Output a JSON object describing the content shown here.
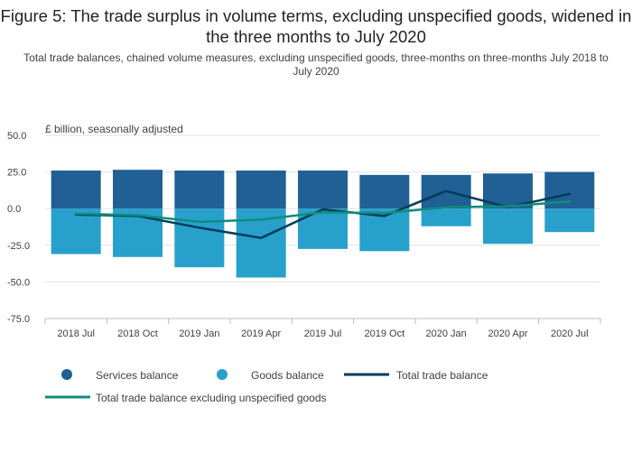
{
  "chart_data": {
    "type": "bar",
    "title": "Figure 5: The trade surplus in volume terms, excluding unspecified goods, widened in the three months to July 2020",
    "subtitle": "Total trade balances, chained volume measures, excluding unspecified goods, three-months on three-months July 2018 to July 2020",
    "ylabel": "£ billion, seasonally adjusted",
    "ylim": [
      -75,
      50
    ],
    "yticks": [
      "50.0",
      "25.0",
      "0.0",
      "-25.0",
      "-50.0",
      "-75.0"
    ],
    "yticks_values": [
      50,
      25,
      0,
      -25,
      -50,
      -75
    ],
    "categories": [
      "2018 Jul",
      "2018 Oct",
      "2019 Jan",
      "2019 Apr",
      "2019 Jul",
      "2019 Oct",
      "2020 Jan",
      "2020 Apr",
      "2020 Jul"
    ],
    "stacked": true,
    "grid": true,
    "legend_position": "bottom",
    "series": [
      {
        "name": "Services balance",
        "kind": "bar",
        "color": "#206095",
        "values": [
          26,
          26.5,
          26,
          26,
          26,
          23,
          23,
          24,
          25
        ]
      },
      {
        "name": "Goods balance",
        "kind": "bar",
        "color": "#27a0cc",
        "values": [
          -31,
          -33,
          -40,
          -47,
          -27.5,
          -29,
          -12,
          -24,
          -16
        ]
      },
      {
        "name": "Total trade balance",
        "kind": "line",
        "color": "#003c57",
        "values": [
          -4,
          -5,
          -13,
          -20,
          -0.5,
          -5,
          12,
          1,
          10
        ]
      },
      {
        "name": "Total trade balance excluding unspecified goods",
        "kind": "line",
        "color": "#118c7b",
        "values": [
          -3.5,
          -4.5,
          -9,
          -7.5,
          -2.5,
          -3,
          1,
          1.5,
          5
        ]
      }
    ]
  }
}
